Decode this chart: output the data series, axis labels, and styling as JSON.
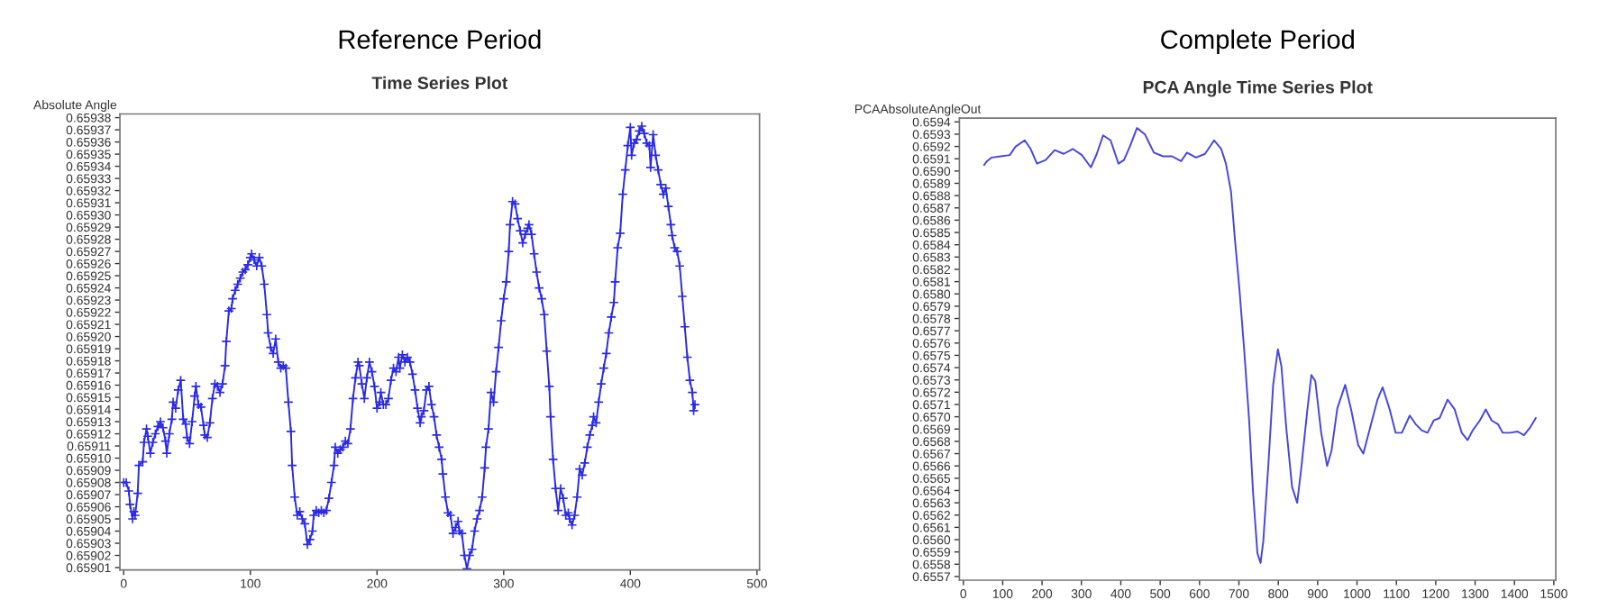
{
  "chart_data": [
    {
      "type": "line",
      "title": "Reference Period",
      "subtitle": "Time Series Plot",
      "ylabel": "Absolute Angle",
      "x": [
        0,
        2,
        4,
        5,
        7,
        8,
        9,
        11,
        12,
        15,
        16,
        18,
        19,
        21,
        23,
        25,
        27,
        29,
        31,
        33,
        34,
        36,
        38,
        39,
        41,
        43,
        45,
        47,
        49,
        50,
        52,
        54,
        56,
        57,
        59,
        61,
        63,
        64,
        66,
        68,
        70,
        72,
        74,
        76,
        78,
        80,
        81,
        83,
        85,
        86,
        88,
        90,
        92,
        94,
        96,
        98,
        100,
        101,
        103,
        105,
        107,
        109,
        111,
        113,
        114,
        116,
        118,
        120,
        122,
        124,
        126,
        128,
        130,
        132,
        133,
        135,
        137,
        139,
        141,
        143,
        145,
        147,
        149,
        150,
        152,
        154,
        156,
        158,
        160,
        162,
        164,
        166,
        167,
        169,
        171,
        173,
        175,
        177,
        179,
        181,
        183,
        185,
        186,
        188,
        190,
        192,
        194,
        196,
        198,
        200,
        202,
        203,
        205,
        207,
        209,
        211,
        213,
        215,
        217,
        218,
        220,
        222,
        224,
        226,
        228,
        230,
        232,
        234,
        235,
        237,
        239,
        241,
        243,
        245,
        247,
        249,
        251,
        252,
        254,
        256,
        258,
        260,
        262,
        264,
        265,
        267,
        269,
        271,
        273,
        275,
        277,
        279,
        281,
        283,
        285,
        286,
        288,
        290,
        292,
        294,
        296,
        298,
        300,
        302,
        304,
        305,
        307,
        309,
        311,
        313,
        315,
        317,
        319,
        320,
        322,
        324,
        326,
        328,
        330,
        332,
        334,
        336,
        337,
        339,
        341,
        343,
        345,
        347,
        349,
        351,
        352,
        354,
        356,
        358,
        360,
        362,
        364,
        366,
        368,
        370,
        371,
        373,
        375,
        377,
        379,
        381,
        383,
        385,
        387,
        388,
        390,
        392,
        394,
        396,
        398,
        400,
        401,
        403,
        405,
        407,
        409,
        411,
        413,
        415,
        416,
        418,
        420,
        422,
        424,
        426,
        428,
        430,
        432,
        433,
        435,
        437,
        439,
        441,
        443,
        445,
        447,
        449,
        450,
        451
      ],
      "series": [
        {
          "color": "#2a2ae8",
          "values": [
            0.65908,
            0.65908,
            0.659073,
            0.659062,
            0.65905,
            0.659056,
            0.659053,
            0.659071,
            0.659094,
            0.659097,
            0.659113,
            0.659124,
            0.659118,
            0.659104,
            0.659113,
            0.65912,
            0.659126,
            0.65913,
            0.659125,
            0.659114,
            0.659104,
            0.65912,
            0.659132,
            0.659146,
            0.659141,
            0.659156,
            0.659164,
            0.659132,
            0.659128,
            0.659117,
            0.659112,
            0.65913,
            0.659151,
            0.659159,
            0.659144,
            0.659142,
            0.659127,
            0.659119,
            0.659117,
            0.659129,
            0.659149,
            0.659161,
            0.659159,
            0.659154,
            0.659161,
            0.659176,
            0.659196,
            0.659221,
            0.659223,
            0.659231,
            0.659238,
            0.659243,
            0.659248,
            0.659253,
            0.659255,
            0.659259,
            0.659265,
            0.659268,
            0.659263,
            0.659258,
            0.659265,
            0.659258,
            0.659243,
            0.659218,
            0.659203,
            0.659191,
            0.659186,
            0.659198,
            0.659179,
            0.659174,
            0.659176,
            0.659174,
            0.659146,
            0.659122,
            0.659094,
            0.659068,
            0.659053,
            0.659056,
            0.65905,
            0.659046,
            0.659029,
            0.659033,
            0.65904,
            0.659053,
            0.659057,
            0.659055,
            0.659057,
            0.659055,
            0.659057,
            0.659067,
            0.65908,
            0.659094,
            0.659109,
            0.659104,
            0.659107,
            0.659109,
            0.659114,
            0.659112,
            0.659124,
            0.659149,
            0.659166,
            0.659179,
            0.659176,
            0.659161,
            0.659149,
            0.659166,
            0.659179,
            0.659171,
            0.659159,
            0.659141,
            0.659146,
            0.659154,
            0.659144,
            0.659144,
            0.659149,
            0.659164,
            0.659174,
            0.659171,
            0.659183,
            0.659174,
            0.659185,
            0.659179,
            0.659183,
            0.659179,
            0.659169,
            0.659156,
            0.659141,
            0.659129,
            0.659134,
            0.659139,
            0.659156,
            0.659159,
            0.659144,
            0.659134,
            0.659119,
            0.659109,
            0.659099,
            0.659087,
            0.659068,
            0.659055,
            0.659053,
            0.659038,
            0.659043,
            0.659048,
            0.65904,
            0.659038,
            0.65902,
            0.659009,
            0.65902,
            0.659025,
            0.65904,
            0.65905,
            0.659057,
            0.659068,
            0.659092,
            0.659109,
            0.659124,
            0.659154,
            0.659146,
            0.659171,
            0.659191,
            0.659213,
            0.659231,
            0.659245,
            0.65927,
            0.659292,
            0.659311,
            0.659309,
            0.659297,
            0.659287,
            0.659277,
            0.659284,
            0.659289,
            0.659292,
            0.659284,
            0.659268,
            0.659253,
            0.65924,
            0.659231,
            0.659218,
            0.659188,
            0.659159,
            0.659134,
            0.659099,
            0.659075,
            0.659057,
            0.659075,
            0.659067,
            0.659053,
            0.659055,
            0.65905,
            0.659045,
            0.659053,
            0.659068,
            0.659091,
            0.659086,
            0.659096,
            0.659109,
            0.659119,
            0.659127,
            0.659134,
            0.659129,
            0.659146,
            0.659161,
            0.659174,
            0.659186,
            0.659203,
            0.659216,
            0.659228,
            0.659245,
            0.659273,
            0.659285,
            0.659317,
            0.659337,
            0.659357,
            0.659372,
            0.659349,
            0.659359,
            0.659362,
            0.659369,
            0.659373,
            0.659367,
            0.659359,
            0.659357,
            0.659339,
            0.659366,
            0.659349,
            0.659337,
            0.659325,
            0.659317,
            0.659322,
            0.659307,
            0.659292,
            0.659283,
            0.659273,
            0.65927,
            0.659258,
            0.659233,
            0.659208,
            0.659183,
            0.659164,
            0.659154,
            0.659139,
            0.659144
          ]
        }
      ],
      "marker": "cross",
      "line_style": "solid",
      "grid": false,
      "legend": false,
      "xlim": [
        -3,
        502
      ],
      "xticks": [
        0,
        100,
        200,
        300,
        400,
        500
      ],
      "ylim": [
        0.659008,
        0.659383
      ],
      "yticks": [
        0.65901,
        0.65902,
        0.65903,
        0.65904,
        0.65905,
        0.65906,
        0.65907,
        0.65908,
        0.65909,
        {
          "value": 0.6591,
          "label": "0.65910"
        },
        0.65911,
        0.65912,
        0.65913,
        0.65914,
        0.65915,
        0.65916,
        0.65917,
        0.65918,
        0.65919,
        {
          "value": 0.6592,
          "label": "0.65920"
        },
        0.65921,
        0.65922,
        0.65923,
        0.65924,
        0.65925,
        0.65926,
        0.65927,
        0.65928,
        0.65929,
        {
          "value": 0.6593,
          "label": "0.65930"
        },
        0.65931,
        0.65932,
        0.65933,
        0.65934,
        0.65935,
        0.65936,
        0.65937,
        0.65938
      ]
    },
    {
      "type": "line",
      "title": "Complete Period",
      "subtitle": "PCA Angle Time Series Plot",
      "ylabel": "PCAAbsoluteAngleOut",
      "x": [
        53,
        60,
        72,
        95,
        118,
        133,
        156,
        171,
        187,
        209,
        232,
        255,
        278,
        301,
        324,
        339,
        355,
        374,
        394,
        408,
        423,
        441,
        461,
        484,
        507,
        530,
        553,
        568,
        591,
        614,
        637,
        655,
        667,
        680,
        690,
        701,
        713,
        726,
        736,
        747,
        755,
        762,
        775,
        787,
        799,
        808,
        820,
        835,
        848,
        858,
        874,
        884,
        894,
        909,
        924,
        935,
        950,
        970,
        985,
        1003,
        1016,
        1034,
        1052,
        1065,
        1083,
        1098,
        1114,
        1134,
        1149,
        1164,
        1179,
        1195,
        1210,
        1230,
        1248,
        1266,
        1281,
        1294,
        1312,
        1327,
        1342,
        1358,
        1370,
        1388,
        1408,
        1424,
        1439,
        1454
      ],
      "series": [
        {
          "color": "#4646e0",
          "values": [
            0.65905,
            0.65908,
            0.65911,
            0.65912,
            0.65913,
            0.6592,
            0.65925,
            0.65918,
            0.65906,
            0.65909,
            0.65917,
            0.65914,
            0.65918,
            0.65913,
            0.65903,
            0.65914,
            0.65929,
            0.65925,
            0.65906,
            0.65909,
            0.6592,
            0.65935,
            0.6593,
            0.65915,
            0.65912,
            0.65912,
            0.65908,
            0.65915,
            0.65911,
            0.65914,
            0.65925,
            0.65918,
            0.65906,
            0.65883,
            0.65844,
            0.65805,
            0.65756,
            0.65697,
            0.65638,
            0.65589,
            0.65581,
            0.65599,
            0.65662,
            0.65726,
            0.65755,
            0.65741,
            0.65692,
            0.65643,
            0.6563,
            0.65657,
            0.65706,
            0.65734,
            0.65729,
            0.65687,
            0.6566,
            0.65672,
            0.65707,
            0.65726,
            0.65706,
            0.65677,
            0.6567,
            0.65692,
            0.65714,
            0.65724,
            0.65706,
            0.65687,
            0.65687,
            0.65701,
            0.65694,
            0.65689,
            0.65687,
            0.65697,
            0.65699,
            0.65714,
            0.65706,
            0.65687,
            0.65681,
            0.65689,
            0.65697,
            0.65706,
            0.65697,
            0.65694,
            0.65687,
            0.65687,
            0.65688,
            0.65685,
            0.65691,
            0.65699
          ]
        }
      ],
      "marker": "none",
      "line_style": "solid",
      "grid": false,
      "legend": false,
      "xlim": [
        -10,
        1505
      ],
      "xticks": [
        0,
        100,
        200,
        300,
        400,
        500,
        600,
        700,
        800,
        900,
        1000,
        1100,
        1200,
        1300,
        1400,
        1500
      ],
      "ylim": [
        0.65567,
        0.65943
      ],
      "yticks": [
        0.6557,
        0.6558,
        0.6559,
        {
          "value": 0.656,
          "label": "0.6560"
        },
        0.6561,
        0.6562,
        0.6563,
        0.6564,
        0.6565,
        0.6566,
        0.6567,
        0.6568,
        0.6569,
        {
          "value": 0.657,
          "label": "0.6570"
        },
        0.6571,
        0.6572,
        0.6573,
        0.6574,
        0.6575,
        0.6576,
        0.6577,
        0.6578,
        0.6579,
        {
          "value": 0.658,
          "label": "0.6580"
        },
        0.6581,
        0.6582,
        0.6583,
        0.6584,
        0.6585,
        0.6586,
        0.6587,
        0.6588,
        0.6589,
        {
          "value": 0.659,
          "label": "0.6590"
        },
        0.6591,
        0.6592,
        0.6593,
        0.6594
      ]
    }
  ]
}
